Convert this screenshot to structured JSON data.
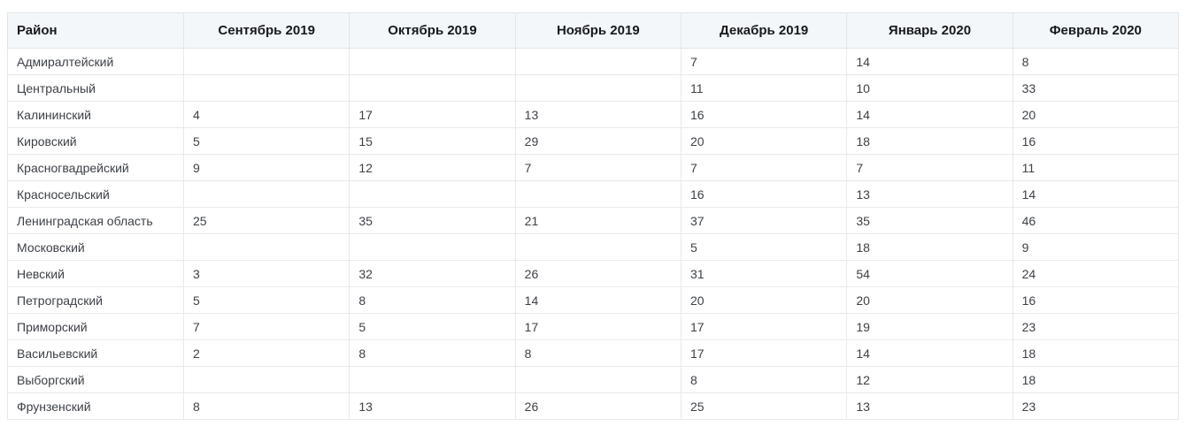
{
  "chart_data": {
    "type": "table",
    "title": "",
    "columns": [
      "Район",
      "Сентябрь 2019",
      "Октябрь 2019",
      "Ноябрь 2019",
      "Декабрь 2019",
      "Январь 2020",
      "Февраль 2020"
    ],
    "rows": [
      [
        "Адмиралтейский",
        "",
        "",
        "",
        "7",
        "14",
        "8"
      ],
      [
        "Центральный",
        "",
        "",
        "",
        "11",
        "10",
        "33"
      ],
      [
        "Калининский",
        "4",
        "17",
        "13",
        "16",
        "14",
        "20"
      ],
      [
        "Кировский",
        "5",
        "15",
        "29",
        "20",
        "18",
        "16"
      ],
      [
        "Красногвадрейский",
        "9",
        "12",
        "7",
        "7",
        "7",
        "11"
      ],
      [
        "Красносельский",
        "",
        "",
        "",
        "16",
        "13",
        "14"
      ],
      [
        "Ленинградская область",
        "25",
        "35",
        "21",
        "37",
        "35",
        "46"
      ],
      [
        "Московский",
        "",
        "",
        "",
        "5",
        "18",
        "9"
      ],
      [
        "Невский",
        "3",
        "32",
        "26",
        "31",
        "54",
        "24"
      ],
      [
        "Петроградский",
        "5",
        "8",
        "14",
        "20",
        "20",
        "16"
      ],
      [
        "Приморский",
        "7",
        "5",
        "17",
        "17",
        "19",
        "23"
      ],
      [
        "Васильевский",
        "2",
        "8",
        "8",
        "17",
        "14",
        "18"
      ],
      [
        "Выборгский",
        "",
        "",
        "",
        "8",
        "12",
        "18"
      ],
      [
        "Фрунзенский",
        "8",
        "13",
        "26",
        "25",
        "13",
        "23"
      ]
    ],
    "layout": {
      "grid": true,
      "header_background": "#f3f7fa",
      "border_color": "#e7e9eb",
      "header_text_color": "#17191d",
      "body_text_color": "#3d4147"
    }
  }
}
